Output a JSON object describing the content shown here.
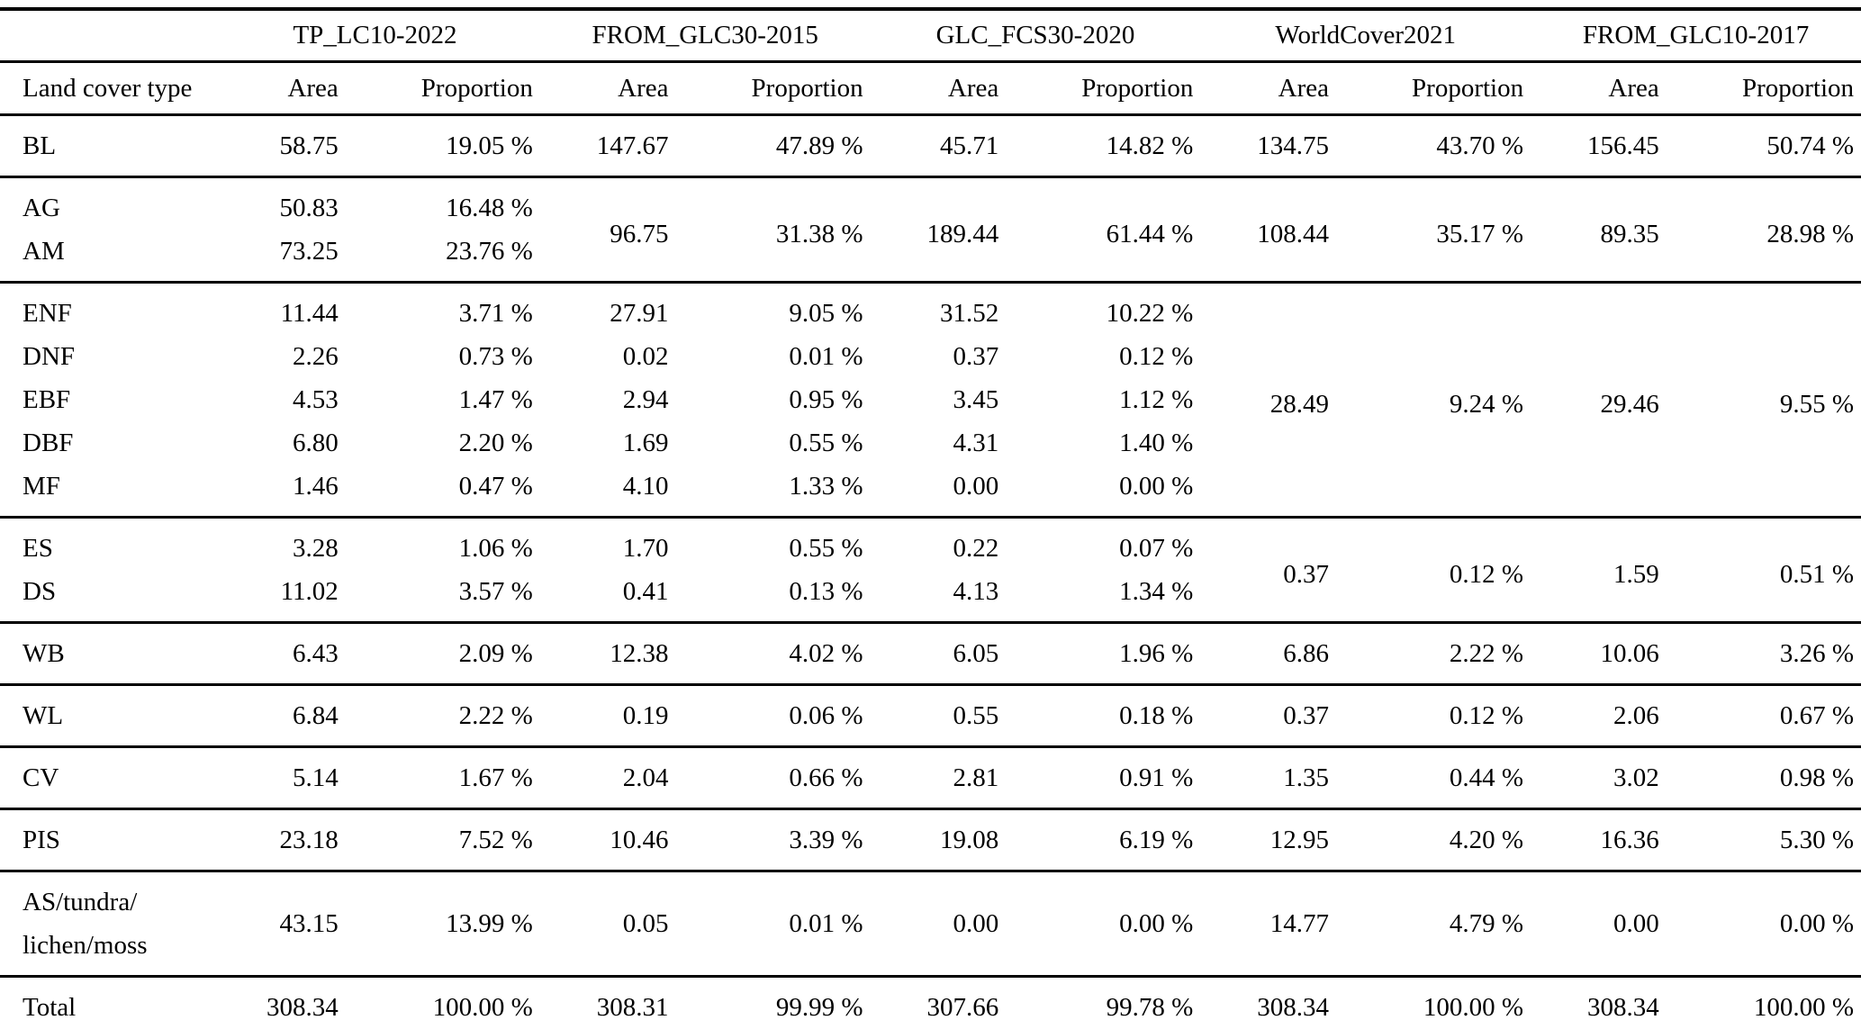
{
  "header": {
    "products": [
      "TP_LC10-2022",
      "FROM_GLC30-2015",
      "GLC_FCS30-2020",
      "WorldCover2021",
      "FROM_GLC10-2017"
    ],
    "land_cover_type": "Land cover type",
    "area": "Area",
    "proportion": "Proportion"
  },
  "rows": {
    "bl": {
      "label": "BL",
      "tp": [
        "58.75",
        "19.05 %"
      ],
      "f30": [
        "147.67",
        "47.89 %"
      ],
      "fcs": [
        "45.71",
        "14.82 %"
      ],
      "wc": [
        "134.75",
        "43.70 %"
      ],
      "f10": [
        "156.45",
        "50.74 %"
      ]
    },
    "ag": {
      "label": "AG",
      "tp": [
        "50.83",
        "16.48 %"
      ]
    },
    "am": {
      "label": "AM",
      "tp": [
        "73.25",
        "23.76 %"
      ]
    },
    "ag_am_merged": {
      "f30": [
        "96.75",
        "31.38 %"
      ],
      "fcs": [
        "189.44",
        "61.44 %"
      ],
      "wc": [
        "108.44",
        "35.17 %"
      ],
      "f10": [
        "89.35",
        "28.98 %"
      ]
    },
    "enf": {
      "label": "ENF",
      "tp": [
        "11.44",
        "3.71 %"
      ],
      "f30": [
        "27.91",
        "9.05 %"
      ],
      "fcs": [
        "31.52",
        "10.22 %"
      ]
    },
    "dnf": {
      "label": "DNF",
      "tp": [
        "2.26",
        "0.73 %"
      ],
      "f30": [
        "0.02",
        "0.01 %"
      ],
      "fcs": [
        "0.37",
        "0.12 %"
      ]
    },
    "ebf": {
      "label": "EBF",
      "tp": [
        "4.53",
        "1.47 %"
      ],
      "f30": [
        "2.94",
        "0.95 %"
      ],
      "fcs": [
        "3.45",
        "1.12 %"
      ]
    },
    "dbf": {
      "label": "DBF",
      "tp": [
        "6.80",
        "2.20 %"
      ],
      "f30": [
        "1.69",
        "0.55 %"
      ],
      "fcs": [
        "4.31",
        "1.40 %"
      ]
    },
    "mf": {
      "label": "MF",
      "tp": [
        "1.46",
        "0.47 %"
      ],
      "f30": [
        "4.10",
        "1.33 %"
      ],
      "fcs": [
        "0.00",
        "0.00 %"
      ]
    },
    "forest_merged": {
      "wc": [
        "28.49",
        "9.24 %"
      ],
      "f10": [
        "29.46",
        "9.55 %"
      ]
    },
    "es": {
      "label": "ES",
      "tp": [
        "3.28",
        "1.06 %"
      ],
      "f30": [
        "1.70",
        "0.55 %"
      ],
      "fcs": [
        "0.22",
        "0.07 %"
      ]
    },
    "ds": {
      "label": "DS",
      "tp": [
        "11.02",
        "3.57 %"
      ],
      "f30": [
        "0.41",
        "0.13 %"
      ],
      "fcs": [
        "4.13",
        "1.34 %"
      ]
    },
    "shrub_merged": {
      "wc": [
        "0.37",
        "0.12 %"
      ],
      "f10": [
        "1.59",
        "0.51 %"
      ]
    },
    "wb": {
      "label": "WB",
      "tp": [
        "6.43",
        "2.09 %"
      ],
      "f30": [
        "12.38",
        "4.02 %"
      ],
      "fcs": [
        "6.05",
        "1.96 %"
      ],
      "wc": [
        "6.86",
        "2.22 %"
      ],
      "f10": [
        "10.06",
        "3.26 %"
      ]
    },
    "wl": {
      "label": "WL",
      "tp": [
        "6.84",
        "2.22 %"
      ],
      "f30": [
        "0.19",
        "0.06 %"
      ],
      "fcs": [
        "0.55",
        "0.18 %"
      ],
      "wc": [
        "0.37",
        "0.12 %"
      ],
      "f10": [
        "2.06",
        "0.67 %"
      ]
    },
    "cv": {
      "label": "CV",
      "tp": [
        "5.14",
        "1.67 %"
      ],
      "f30": [
        "2.04",
        "0.66 %"
      ],
      "fcs": [
        "2.81",
        "0.91 %"
      ],
      "wc": [
        "1.35",
        "0.44 %"
      ],
      "f10": [
        "3.02",
        "0.98 %"
      ]
    },
    "pis": {
      "label": "PIS",
      "tp": [
        "23.18",
        "7.52 %"
      ],
      "f30": [
        "10.46",
        "3.39 %"
      ],
      "fcs": [
        "19.08",
        "6.19 %"
      ],
      "wc": [
        "12.95",
        "4.20 %"
      ],
      "f10": [
        "16.36",
        "5.30 %"
      ]
    },
    "as_tundra": {
      "label": "AS/tundra/\nlichen/moss",
      "tp": [
        "43.15",
        "13.99 %"
      ],
      "f30": [
        "0.05",
        "0.01 %"
      ],
      "fcs": [
        "0.00",
        "0.00 %"
      ],
      "wc": [
        "14.77",
        "4.79 %"
      ],
      "f10": [
        "0.00",
        "0.00 %"
      ]
    },
    "total": {
      "label": "Total",
      "tp": [
        "308.34",
        "100.00 %"
      ],
      "f30": [
        "308.31",
        "99.99 %"
      ],
      "fcs": [
        "307.66",
        "99.78 %"
      ],
      "wc": [
        "308.34",
        "100.00 %"
      ],
      "f10": [
        "308.34",
        "100.00 %"
      ]
    }
  }
}
